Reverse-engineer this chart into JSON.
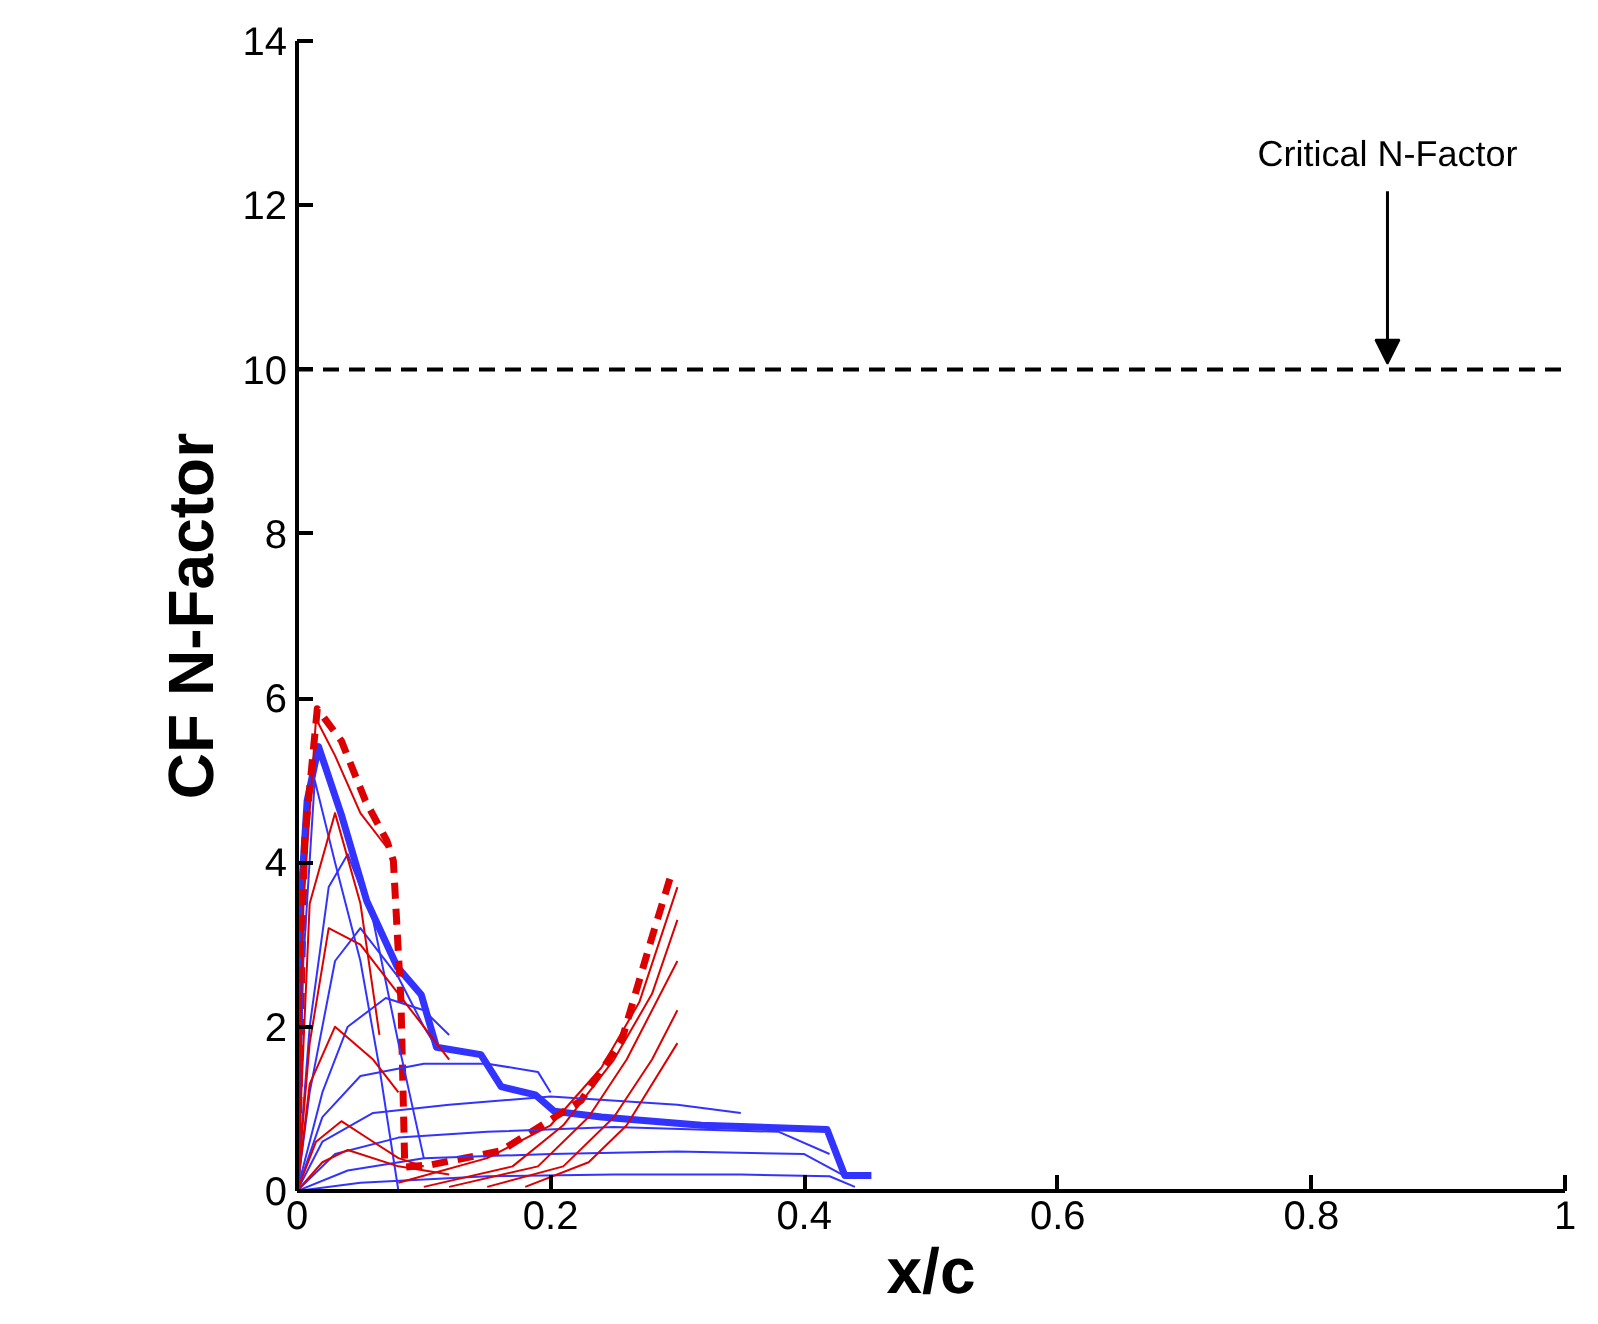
{
  "chart_data": {
    "type": "line",
    "xlabel": "x/c",
    "ylabel": "CF N-Factor",
    "xlim": [
      0,
      1
    ],
    "ylim": [
      0,
      14
    ],
    "xticks": [
      0,
      0.2,
      0.4,
      0.6,
      0.8,
      1
    ],
    "yticks": [
      0,
      2,
      4,
      6,
      8,
      10,
      12,
      14
    ],
    "grid": false,
    "marker": "none",
    "ref_lines": [
      {
        "axis": "y",
        "value": 10,
        "color": "#000000",
        "line_style": "dashed"
      }
    ],
    "annotations": [
      {
        "text": "Critical N-Factor",
        "x": 0.86,
        "y": 10
      }
    ],
    "series": [
      {
        "color": "#3333ff",
        "x": [
          0,
          0.003,
          0.008,
          0.017,
          0.035,
          0.055,
          0.079,
          0.098,
          0.11,
          0.145,
          0.161,
          0.188,
          0.203,
          0.24,
          0.319,
          0.418,
          0.432,
          0.453
        ],
        "values": [
          0,
          3.53,
          4.75,
          5.41,
          4.58,
          3.53,
          2.73,
          2.39,
          1.75,
          1.66,
          1.27,
          1.17,
          0.97,
          0.9,
          0.8,
          0.75,
          0.19,
          0.19
        ]
      },
      {
        "color": "#dd0000",
        "line_style": "dashed",
        "x": [
          0,
          0.006,
          0.016,
          0.035,
          0.054,
          0.071,
          0.076,
          0.082,
          0.085,
          0.106,
          0.161,
          0.224,
          0.256,
          0.279,
          0.295
        ],
        "values": [
          0,
          4.26,
          5.87,
          5.48,
          4.75,
          4.26,
          4.02,
          2.31,
          0.29,
          0.32,
          0.49,
          1.1,
          1.83,
          3.04,
          3.85
        ]
      },
      {
        "color": "#3333ff",
        "x": [
          0,
          0.005,
          0.014,
          0.03,
          0.05,
          0.065,
          0.08
        ],
        "values": [
          0,
          2.8,
          5.0,
          4.0,
          2.8,
          1.5,
          0
        ]
      },
      {
        "color": "#3333ff",
        "x": [
          0,
          0.01,
          0.025,
          0.04,
          0.06,
          0.08,
          0.1
        ],
        "values": [
          0,
          2.0,
          3.7,
          4.1,
          3.3,
          1.8,
          0.4
        ]
      },
      {
        "color": "#3333ff",
        "x": [
          0,
          0.01,
          0.03,
          0.05,
          0.08,
          0.1,
          0.11
        ],
        "values": [
          0,
          1.2,
          2.8,
          3.2,
          2.6,
          2.0,
          1.75
        ]
      },
      {
        "color": "#3333ff",
        "x": [
          0,
          0.02,
          0.04,
          0.07,
          0.1,
          0.12
        ],
        "values": [
          0,
          1.2,
          2.0,
          2.35,
          2.2,
          1.9
        ]
      },
      {
        "color": "#3333ff",
        "x": [
          0,
          0.02,
          0.05,
          0.1,
          0.15,
          0.19,
          0.2
        ],
        "values": [
          0,
          0.9,
          1.4,
          1.55,
          1.55,
          1.45,
          1.2
        ]
      },
      {
        "color": "#3333ff",
        "x": [
          0,
          0.02,
          0.06,
          0.12,
          0.2,
          0.3,
          0.35
        ],
        "values": [
          0,
          0.6,
          0.95,
          1.05,
          1.15,
          1.05,
          0.95
        ]
      },
      {
        "color": "#3333ff",
        "x": [
          0,
          0.03,
          0.08,
          0.15,
          0.25,
          0.38,
          0.42
        ],
        "values": [
          0,
          0.45,
          0.65,
          0.72,
          0.78,
          0.72,
          0.45
        ]
      },
      {
        "color": "#3333ff",
        "x": [
          0,
          0.04,
          0.1,
          0.2,
          0.3,
          0.4,
          0.43
        ],
        "values": [
          0,
          0.25,
          0.4,
          0.45,
          0.48,
          0.45,
          0.2
        ]
      },
      {
        "color": "#3333ff",
        "x": [
          0,
          0.05,
          0.15,
          0.25,
          0.35,
          0.42,
          0.44
        ],
        "values": [
          0,
          0.1,
          0.18,
          0.2,
          0.2,
          0.18,
          0.05
        ]
      },
      {
        "color": "#dd0000",
        "x": [
          0,
          0.005,
          0.015,
          0.03,
          0.05,
          0.07
        ],
        "values": [
          0,
          3.5,
          5.75,
          5.3,
          4.6,
          4.2
        ]
      },
      {
        "color": "#dd0000",
        "x": [
          0,
          0.01,
          0.03,
          0.05,
          0.065
        ],
        "values": [
          0,
          3.5,
          4.6,
          3.5,
          1.9
        ]
      },
      {
        "color": "#dd0000",
        "x": [
          0,
          0.01,
          0.025,
          0.05,
          0.08,
          0.12
        ],
        "values": [
          0,
          1.8,
          3.2,
          3.0,
          2.4,
          1.6
        ]
      },
      {
        "color": "#dd0000",
        "x": [
          0,
          0.01,
          0.03,
          0.06,
          0.08
        ],
        "values": [
          0,
          1.3,
          2.0,
          1.6,
          1.2
        ]
      },
      {
        "color": "#dd0000",
        "x": [
          0,
          0.015,
          0.035,
          0.06,
          0.08,
          0.1
        ],
        "values": [
          0,
          0.6,
          0.85,
          0.6,
          0.4,
          0.3
        ]
      },
      {
        "color": "#dd0000",
        "x": [
          0,
          0.02,
          0.04,
          0.08,
          0.12
        ],
        "values": [
          0,
          0.35,
          0.5,
          0.3,
          0.2
        ]
      },
      {
        "color": "#dd0000",
        "x": [
          0.08,
          0.15,
          0.2,
          0.24,
          0.27,
          0.3
        ],
        "values": [
          0.1,
          0.4,
          0.8,
          1.5,
          2.3,
          3.7
        ]
      },
      {
        "color": "#dd0000",
        "x": [
          0.1,
          0.17,
          0.21,
          0.25,
          0.28,
          0.3
        ],
        "values": [
          0.05,
          0.3,
          0.8,
          1.6,
          2.4,
          3.3
        ]
      },
      {
        "color": "#dd0000",
        "x": [
          0.12,
          0.19,
          0.23,
          0.26,
          0.3
        ],
        "values": [
          0.05,
          0.3,
          0.9,
          1.6,
          2.8
        ]
      },
      {
        "color": "#dd0000",
        "x": [
          0.15,
          0.21,
          0.25,
          0.28,
          0.3
        ],
        "values": [
          0.05,
          0.3,
          0.9,
          1.6,
          2.2
        ]
      },
      {
        "color": "#dd0000",
        "x": [
          0.18,
          0.23,
          0.26,
          0.3
        ],
        "values": [
          0.05,
          0.35,
          0.8,
          1.8
        ]
      }
    ]
  }
}
